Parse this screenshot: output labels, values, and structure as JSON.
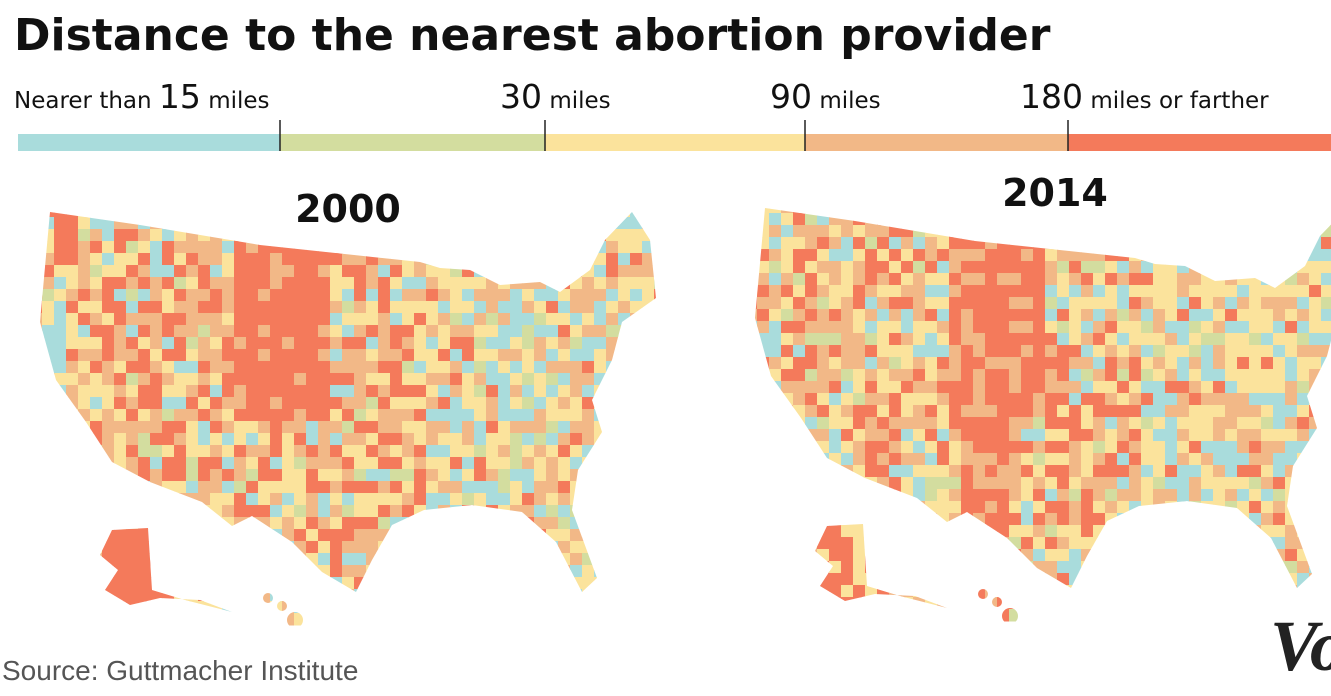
{
  "header": {
    "title": "Distance to the nearest abortion provider"
  },
  "legend": {
    "items": [
      {
        "prefix": "Nearer than",
        "number": "15",
        "unit": "miles",
        "color": "#a9dcdc"
      },
      {
        "number": "30",
        "unit": "miles",
        "color": "#d3dd9f"
      },
      {
        "number": "90",
        "unit": "miles",
        "color": "#fbe39c"
      },
      {
        "number": "180",
        "unit": "miles or farther",
        "color": "#f2b887"
      }
    ],
    "last_color": "#f47a5b"
  },
  "maps": [
    {
      "year": "2000"
    },
    {
      "year": "2014"
    }
  ],
  "footer": {
    "source": "Source: Guttmacher Institute",
    "logo": "Vo"
  }
}
